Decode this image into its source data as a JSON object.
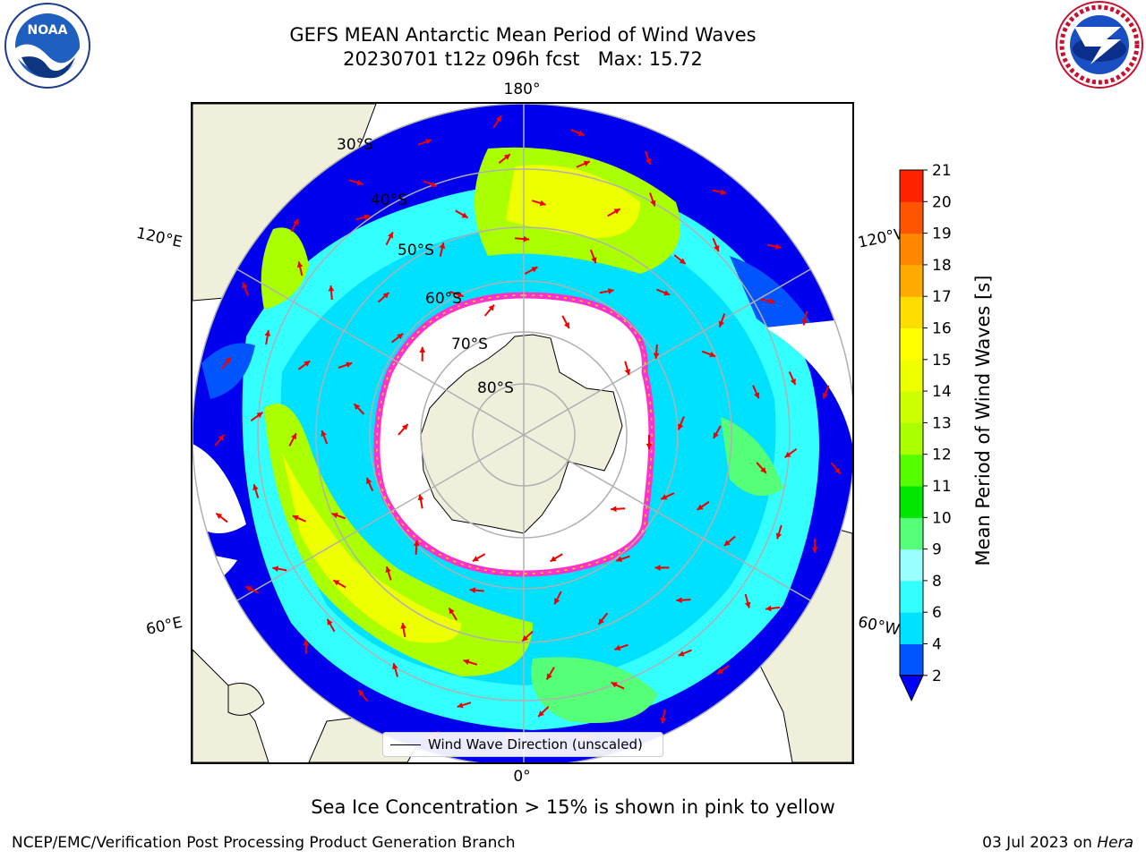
{
  "header": {
    "title": "GEFS MEAN Antarctic Mean Period of Wind Waves",
    "subtitle": "20230701 t12z 096h fcst   Max: 15.72"
  },
  "logos": {
    "left": "NOAA",
    "right": "NATIONAL WEATHER SERVICE"
  },
  "map": {
    "longitude_labels": {
      "top": "180°",
      "bottom": "0°",
      "left_upper": "120°E",
      "left_lower": "60°E",
      "right_upper": "120°W",
      "right_lower": "60°W"
    },
    "latitude_labels": [
      "30°S",
      "40°S",
      "50°S",
      "60°S",
      "70°S",
      "80°S"
    ],
    "legend_label": "Wind Wave Direction (unscaled)"
  },
  "colorbar": {
    "title": "Mean Period of Wind Waves [s]",
    "ticks": [
      "2",
      "4",
      "6",
      "8",
      "9",
      "10",
      "11",
      "12",
      "13",
      "14",
      "15",
      "16",
      "17",
      "18",
      "19",
      "20",
      "21"
    ],
    "colors": [
      "#0055ff",
      "#00e0ff",
      "#33ffff",
      "#99ffff",
      "#55ff77",
      "#00e600",
      "#55ff00",
      "#aaff00",
      "#ccff00",
      "#eeff00",
      "#ffff00",
      "#ffdd00",
      "#ffaa00",
      "#ff8800",
      "#ff5500",
      "#ff2200"
    ],
    "under_color": "#0000ff"
  },
  "footer": {
    "caption": "Sea Ice Concentration > 15% is shown in pink to yellow",
    "credit": "NCEP/EMC/Verification Post Processing Product Generation Branch",
    "date": "03 Jul 2023 on",
    "host": "Hera"
  }
}
